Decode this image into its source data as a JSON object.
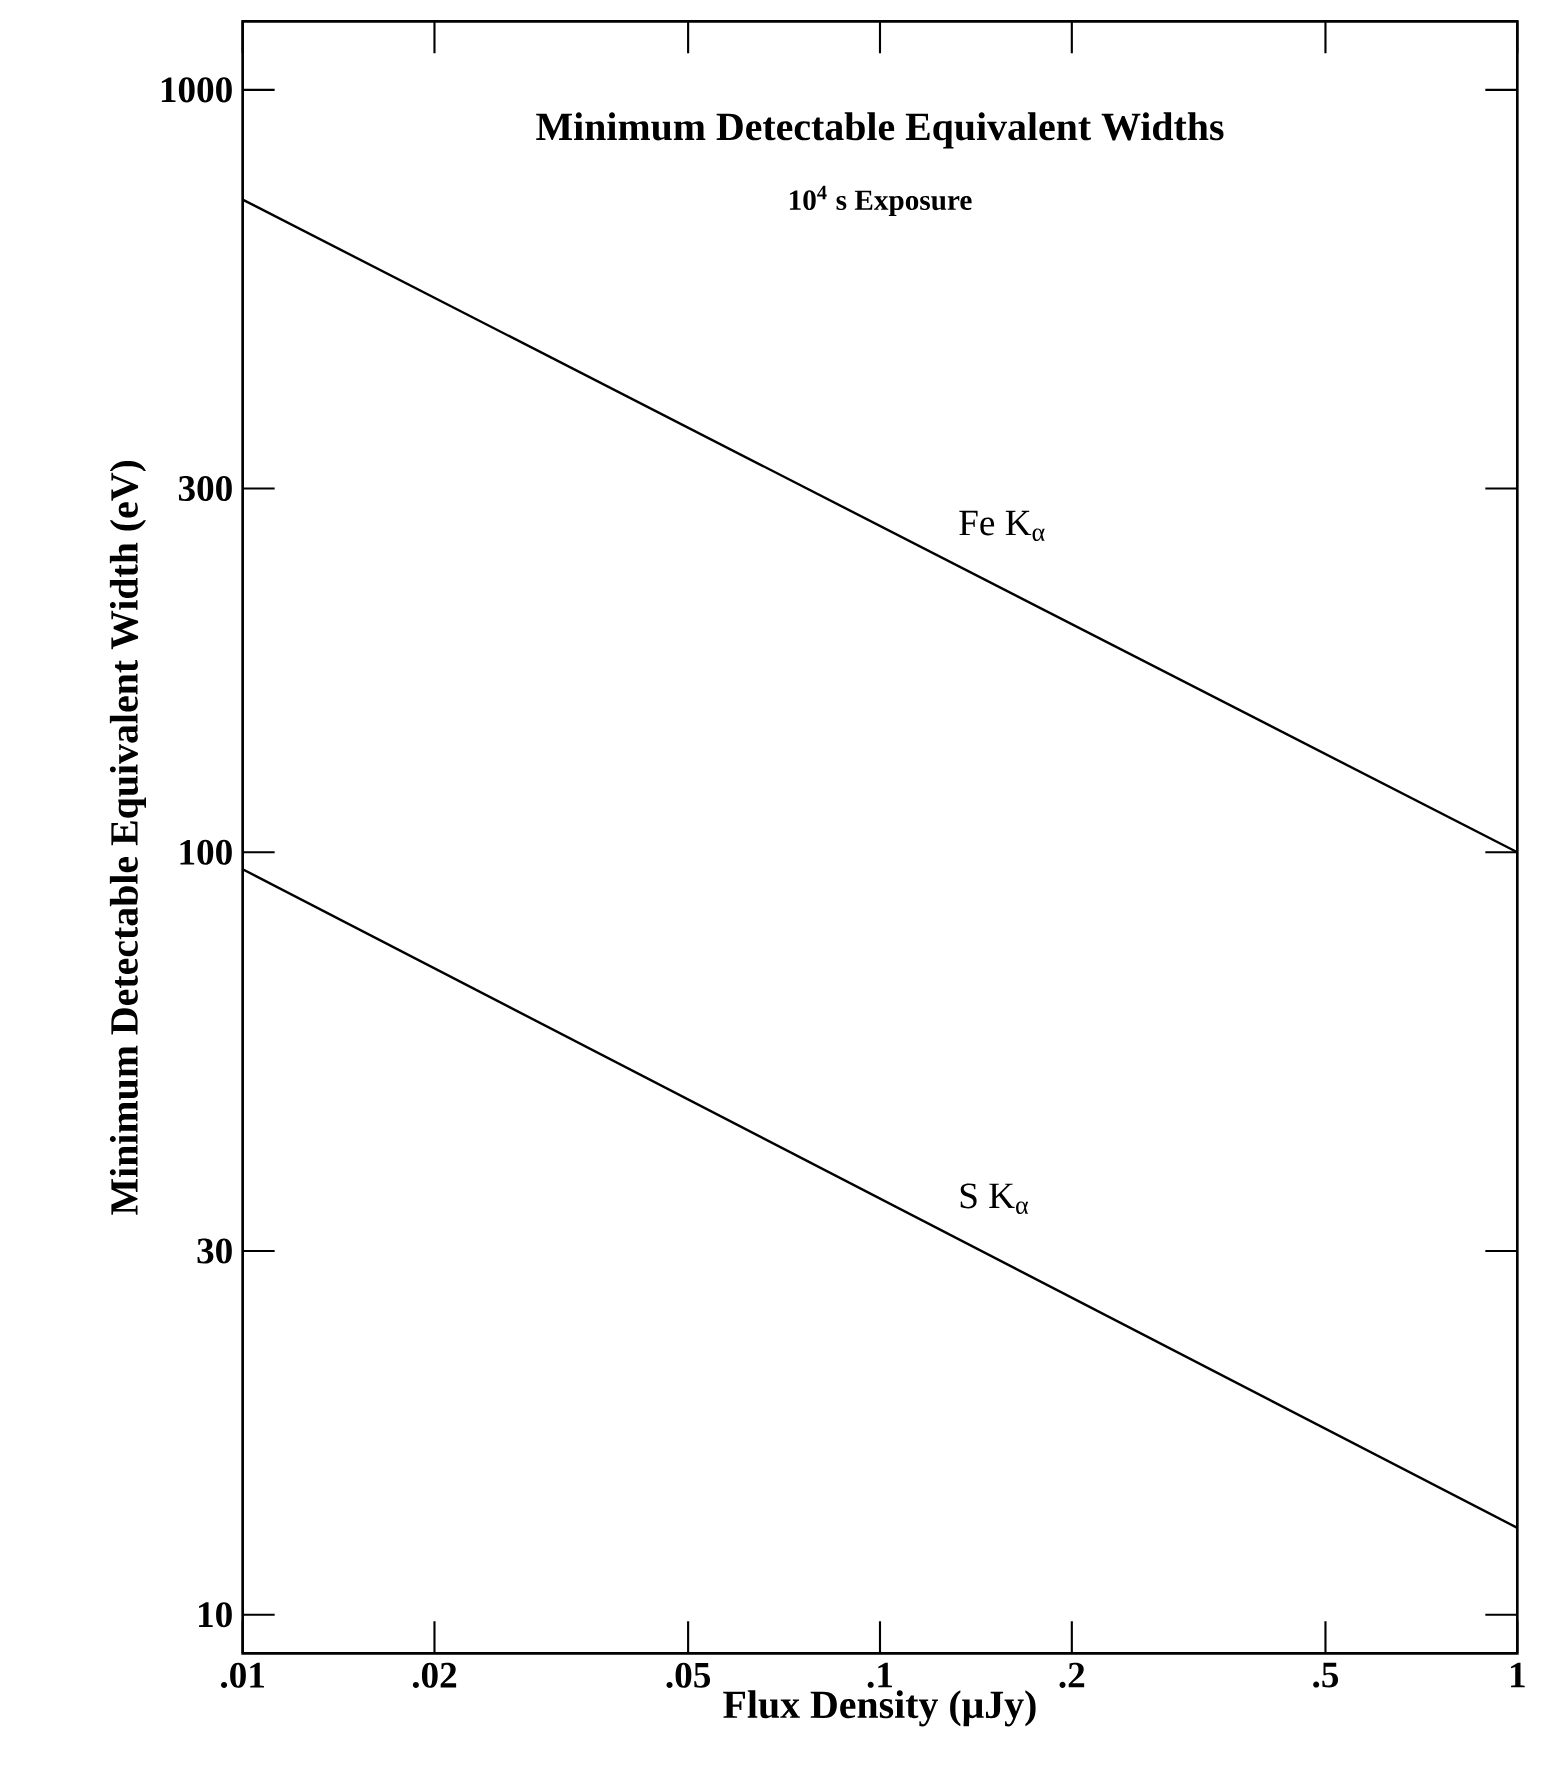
{
  "chart_data": {
    "type": "line",
    "title": "Minimum Detectable Equivalent Widths",
    "subtitle": "10$^{4}$ s Exposure",
    "xlabel": "Flux Density (μJy)",
    "ylabel": "Minimum Detectable Equivalent Width (eV)",
    "log": "xy",
    "xlim": [
      0.01,
      1
    ],
    "ylim": [
      8.9,
      1230
    ],
    "xticks": [
      {
        "value": 0.01,
        "label": ".01"
      },
      {
        "value": 0.02,
        "label": ".02"
      },
      {
        "value": 0.05,
        "label": ".05"
      },
      {
        "value": 0.1,
        "label": ".1"
      },
      {
        "value": 0.2,
        "label": ".2"
      },
      {
        "value": 0.5,
        "label": ".5"
      },
      {
        "value": 1,
        "label": "1"
      }
    ],
    "yticks": [
      10,
      30,
      100,
      300,
      1000
    ],
    "x": [
      0.01,
      1
    ],
    "series": [
      {
        "name": "Fe K$_{α}$",
        "color": "#000000",
        "values": [
          718,
          100
        ]
      },
      {
        "name": "S K$_{α}$",
        "color": "#000000",
        "values": [
          95,
          13
        ]
      }
    ],
    "grid": false,
    "legend": false,
    "marker": "none",
    "line_style": "solid"
  }
}
